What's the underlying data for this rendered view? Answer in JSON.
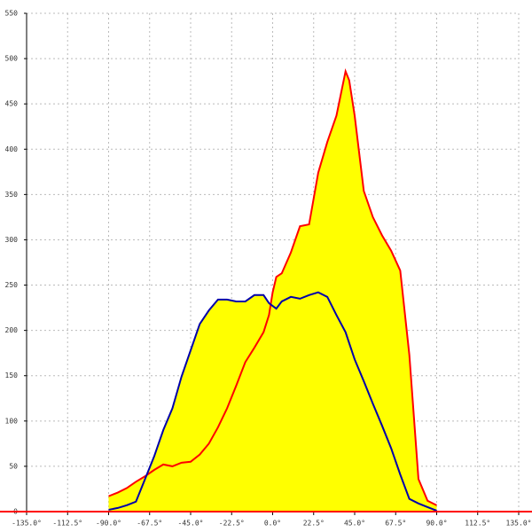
{
  "chart_data": {
    "type": "area",
    "x": [
      -90,
      -85,
      -80,
      -75,
      -70,
      -65,
      -60,
      -55,
      -50,
      -45,
      -40,
      -35,
      -30,
      -25,
      -20,
      -15,
      -10,
      -5,
      -2,
      0,
      2,
      5,
      10,
      15,
      20,
      25,
      30,
      35,
      40,
      42,
      45,
      50,
      55,
      60,
      65,
      70,
      75,
      80,
      85,
      90
    ],
    "series": [
      {
        "color": "#ff0000",
        "values": [
          17,
          21,
          26,
          33,
          39,
          46,
          52,
          50,
          54,
          55,
          63,
          75,
          93,
          114,
          139,
          165,
          181,
          198,
          217,
          242,
          259,
          263,
          286,
          315,
          317,
          374,
          408,
          437,
          486,
          476,
          437,
          354,
          325,
          305,
          288,
          266,
          173,
          36,
          12,
          7
        ]
      },
      {
        "color": "#0000aa",
        "values": [
          2,
          4,
          7,
          11,
          36,
          61,
          90,
          114,
          149,
          178,
          207,
          222,
          234,
          234,
          232,
          232,
          239,
          239,
          230,
          227,
          224,
          232,
          237,
          235,
          239,
          242,
          237,
          217,
          198,
          186,
          168,
          144,
          119,
          95,
          70,
          41,
          14,
          9,
          5,
          1
        ]
      }
    ],
    "fill_color": "#ffff00",
    "xlim": [
      -135,
      135
    ],
    "xticks": [
      {
        "value": -135,
        "label": "-135.0°"
      },
      {
        "value": -112.5,
        "label": "-112.5°"
      },
      {
        "value": -90,
        "label": "-90.0°"
      },
      {
        "value": -67.5,
        "label": "-67.5°"
      },
      {
        "value": -45,
        "label": "-45.0°"
      },
      {
        "value": -22.5,
        "label": "-22.5°"
      },
      {
        "value": 0,
        "label": "0.0°"
      },
      {
        "value": 22.5,
        "label": "22.5°"
      },
      {
        "value": 45,
        "label": "45.0°"
      },
      {
        "value": 67.5,
        "label": "67.5°"
      },
      {
        "value": 90,
        "label": "90.0°"
      },
      {
        "value": 112.5,
        "label": "112.5°"
      },
      {
        "value": 135,
        "label": "135.0°"
      }
    ],
    "ylim": [
      0,
      550
    ],
    "yticks": [
      0,
      50,
      100,
      150,
      200,
      250,
      300,
      350,
      400,
      450,
      500,
      550
    ],
    "grid": true
  }
}
